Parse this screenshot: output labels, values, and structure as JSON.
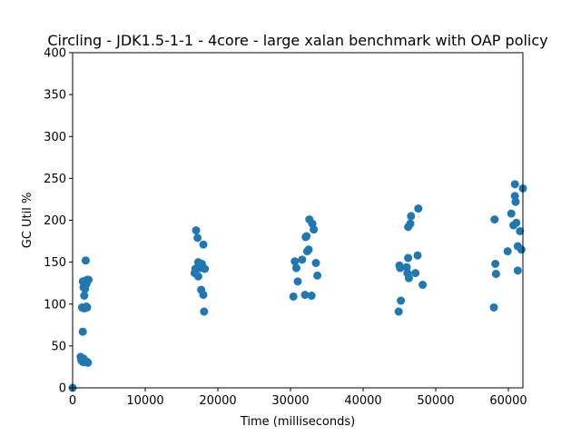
{
  "chart_data": {
    "type": "scatter",
    "title": "Circling - JDK1.5-1-1 - 4core -  large xalan benchmark with OAP policy",
    "xlabel": "Time (milliseconds)",
    "ylabel": "GC Util %",
    "xlim": [
      0,
      62000
    ],
    "ylim": [
      0,
      400
    ],
    "x_ticks": [
      0,
      10000,
      20000,
      30000,
      40000,
      50000,
      60000
    ],
    "y_ticks": [
      0,
      50,
      100,
      150,
      200,
      250,
      300,
      350,
      400
    ],
    "grid": false,
    "legend": "none",
    "marker_color": "#1f77b4",
    "series": [
      {
        "points": [
          [
            0,
            0
          ],
          [
            1100,
            37
          ],
          [
            1200,
            33
          ],
          [
            1300,
            32
          ],
          [
            1400,
            31
          ],
          [
            1500,
            35
          ],
          [
            1600,
            31
          ],
          [
            1700,
            32
          ],
          [
            1800,
            31
          ],
          [
            2000,
            31
          ],
          [
            2100,
            30
          ],
          [
            1400,
            67
          ],
          [
            1300,
            96
          ],
          [
            1500,
            95
          ],
          [
            1700,
            95
          ],
          [
            1900,
            97
          ],
          [
            2000,
            96
          ],
          [
            1600,
            110
          ],
          [
            1500,
            120
          ],
          [
            1700,
            118
          ],
          [
            1400,
            127
          ],
          [
            1800,
            128
          ],
          [
            2000,
            129
          ],
          [
            2200,
            129
          ],
          [
            1900,
            124
          ],
          [
            1800,
            152
          ],
          [
            16800,
            137
          ],
          [
            16900,
            142
          ],
          [
            17000,
            188
          ],
          [
            17200,
            179
          ],
          [
            17300,
            133
          ],
          [
            17100,
            143
          ],
          [
            17300,
            150
          ],
          [
            17500,
            143
          ],
          [
            17700,
            117
          ],
          [
            17800,
            148
          ],
          [
            17900,
            143
          ],
          [
            18000,
            111
          ],
          [
            18000,
            171
          ],
          [
            18100,
            91
          ],
          [
            18200,
            142
          ],
          [
            30400,
            109
          ],
          [
            30600,
            151
          ],
          [
            30800,
            143
          ],
          [
            31000,
            127
          ],
          [
            31600,
            153
          ],
          [
            32000,
            111
          ],
          [
            32100,
            180
          ],
          [
            32200,
            181
          ],
          [
            32300,
            163
          ],
          [
            32500,
            165
          ],
          [
            32600,
            201
          ],
          [
            32900,
            110
          ],
          [
            33000,
            196
          ],
          [
            33200,
            189
          ],
          [
            33500,
            149
          ],
          [
            33700,
            134
          ],
          [
            44900,
            91
          ],
          [
            45000,
            146
          ],
          [
            45100,
            143
          ],
          [
            45200,
            104
          ],
          [
            46000,
            144
          ],
          [
            46100,
            137
          ],
          [
            46200,
            192
          ],
          [
            46200,
            155
          ],
          [
            46300,
            131
          ],
          [
            46500,
            196
          ],
          [
            46600,
            205
          ],
          [
            47200,
            137
          ],
          [
            47500,
            158
          ],
          [
            47600,
            214
          ],
          [
            48200,
            123
          ],
          [
            58000,
            96
          ],
          [
            58100,
            201
          ],
          [
            58200,
            148
          ],
          [
            58300,
            136
          ],
          [
            59900,
            163
          ],
          [
            60400,
            208
          ],
          [
            60700,
            194
          ],
          [
            60900,
            243
          ],
          [
            60900,
            229
          ],
          [
            61000,
            222
          ],
          [
            61100,
            197
          ],
          [
            61300,
            140
          ],
          [
            61300,
            169
          ],
          [
            61600,
            187
          ],
          [
            61800,
            165
          ],
          [
            62000,
            238
          ]
        ]
      }
    ]
  }
}
